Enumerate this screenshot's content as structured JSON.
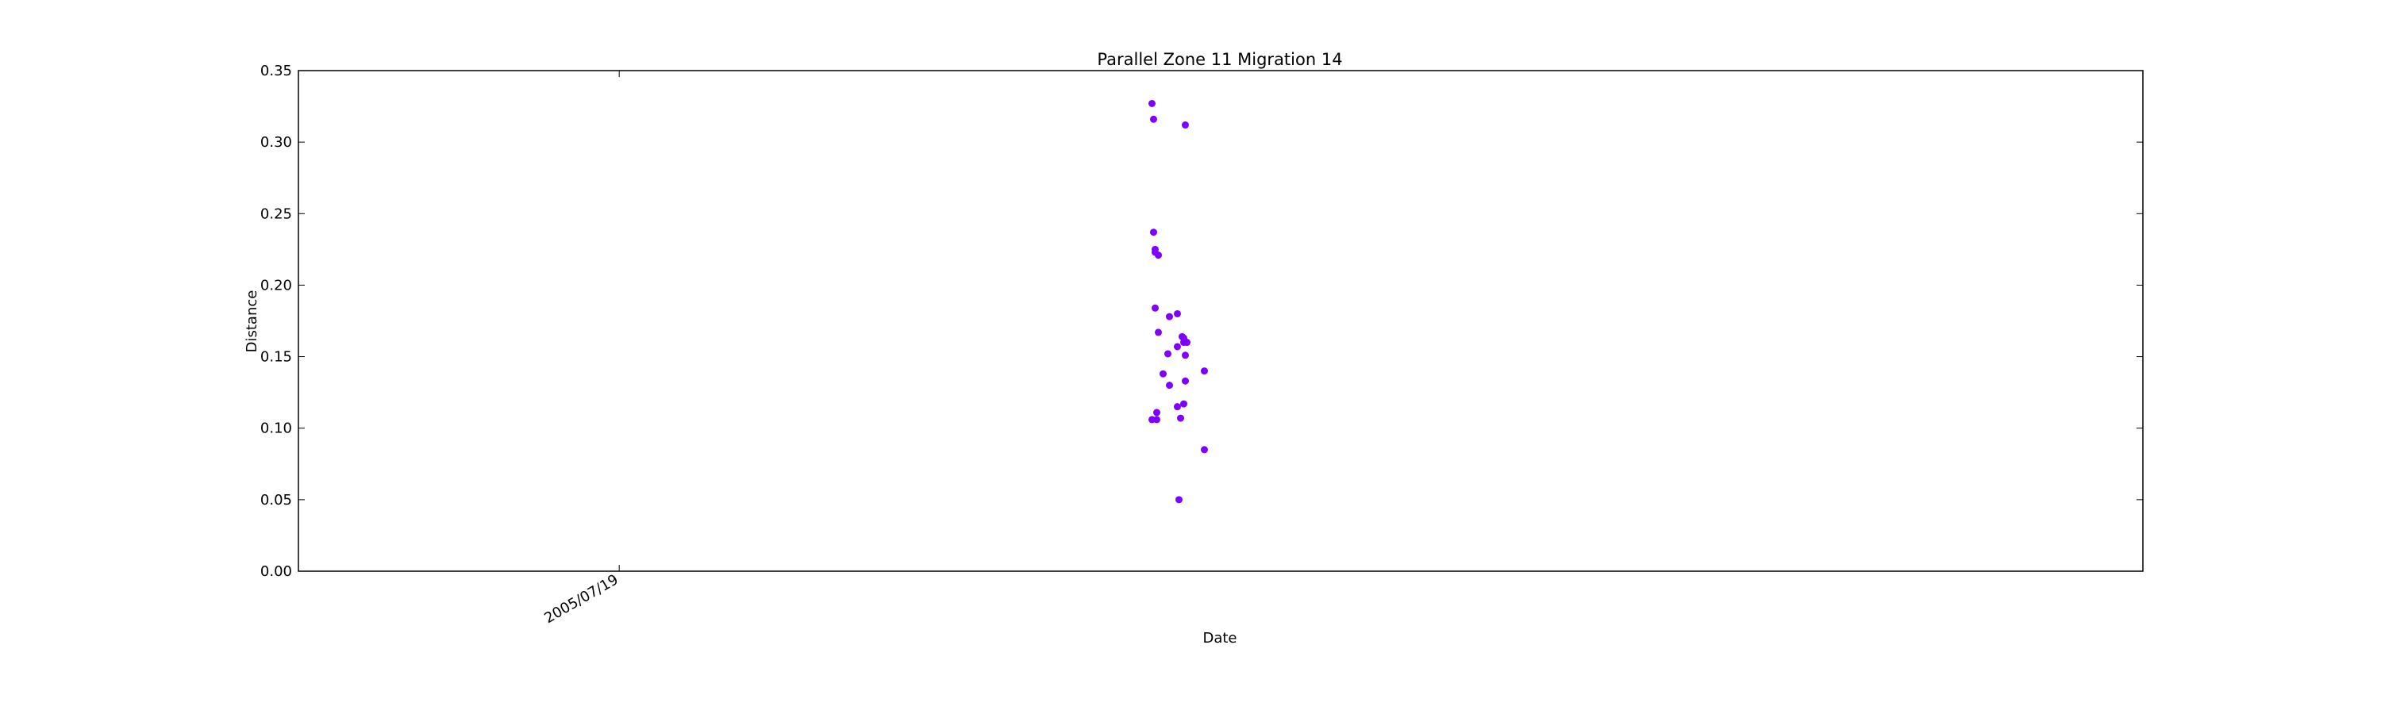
{
  "chart_data": {
    "type": "scatter",
    "title": "Parallel Zone 11 Migration 14",
    "xlabel": "Date",
    "ylabel": "Distance",
    "x_tick_labels": [
      "2005/07/19"
    ],
    "y_tick_labels": [
      "0.00",
      "0.05",
      "0.10",
      "0.15",
      "0.20",
      "0.25",
      "0.30",
      "0.35"
    ],
    "ylim": [
      0,
      0.35
    ],
    "xlim": [
      "2005/07/15",
      "2005/08/07"
    ],
    "grid": false,
    "marker_color": "#7f00ff",
    "series": [
      {
        "points": [
          {
            "x": "2005/07/26",
            "y": 0.327
          },
          {
            "x": "2005/07/26",
            "y": 0.316
          },
          {
            "x": "2005/07/26",
            "y": 0.312
          },
          {
            "x": "2005/07/26",
            "y": 0.237
          },
          {
            "x": "2005/07/26",
            "y": 0.225
          },
          {
            "x": "2005/07/26",
            "y": 0.223
          },
          {
            "x": "2005/07/26",
            "y": 0.221
          },
          {
            "x": "2005/07/26",
            "y": 0.184
          },
          {
            "x": "2005/07/26",
            "y": 0.18
          },
          {
            "x": "2005/07/26",
            "y": 0.178
          },
          {
            "x": "2005/07/26",
            "y": 0.167
          },
          {
            "x": "2005/07/26",
            "y": 0.164
          },
          {
            "x": "2005/07/26",
            "y": 0.163
          },
          {
            "x": "2005/07/26",
            "y": 0.16
          },
          {
            "x": "2005/07/26",
            "y": 0.16
          },
          {
            "x": "2005/07/26",
            "y": 0.157
          },
          {
            "x": "2005/07/26",
            "y": 0.152
          },
          {
            "x": "2005/07/26",
            "y": 0.151
          },
          {
            "x": "2005/07/26",
            "y": 0.14
          },
          {
            "x": "2005/07/26",
            "y": 0.138
          },
          {
            "x": "2005/07/26",
            "y": 0.133
          },
          {
            "x": "2005/07/26",
            "y": 0.13
          },
          {
            "x": "2005/07/26",
            "y": 0.117
          },
          {
            "x": "2005/07/26",
            "y": 0.115
          },
          {
            "x": "2005/07/26",
            "y": 0.111
          },
          {
            "x": "2005/07/26",
            "y": 0.107
          },
          {
            "x": "2005/07/26",
            "y": 0.106
          },
          {
            "x": "2005/07/26",
            "y": 0.106
          },
          {
            "x": "2005/07/26",
            "y": 0.085
          },
          {
            "x": "2005/07/26",
            "y": 0.05
          }
        ]
      }
    ]
  }
}
